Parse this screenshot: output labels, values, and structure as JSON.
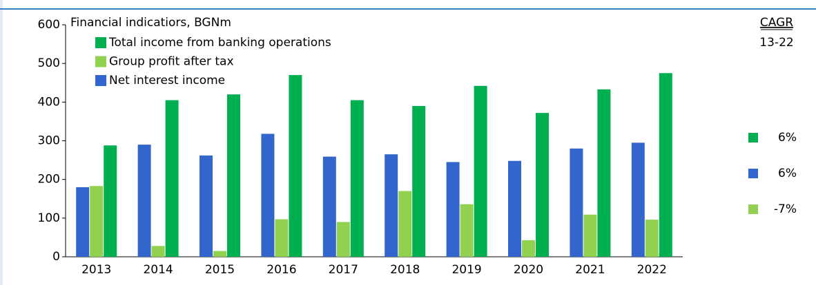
{
  "chart_data": {
    "type": "bar",
    "title": "Financial indicatiors, BGNm",
    "categories": [
      "2013",
      "2014",
      "2015",
      "2016",
      "2017",
      "2018",
      "2019",
      "2020",
      "2021",
      "2022"
    ],
    "series": [
      {
        "name": "Net interest income",
        "color": "#3366cc",
        "values": [
          180,
          290,
          262,
          318,
          259,
          265,
          245,
          248,
          280,
          295
        ]
      },
      {
        "name": "Group profit after tax",
        "color": "#92d050",
        "values": [
          183,
          28,
          15,
          97,
          90,
          170,
          136,
          43,
          109,
          96
        ]
      },
      {
        "name": "Total income from banking operations",
        "color": "#00b050",
        "values": [
          288,
          405,
          420,
          470,
          405,
          390,
          442,
          372,
          433,
          475
        ]
      }
    ],
    "ylim": [
      0,
      600
    ],
    "yticks": [
      0,
      100,
      200,
      300,
      400,
      500,
      600
    ],
    "grid": false,
    "cagr": {
      "title": "CAGR",
      "period": "13-22",
      "items": [
        {
          "color": "#00b050",
          "label": "6%"
        },
        {
          "color": "#3366cc",
          "label": "6%"
        },
        {
          "color": "#92d050",
          "label": "-7%"
        }
      ]
    }
  }
}
